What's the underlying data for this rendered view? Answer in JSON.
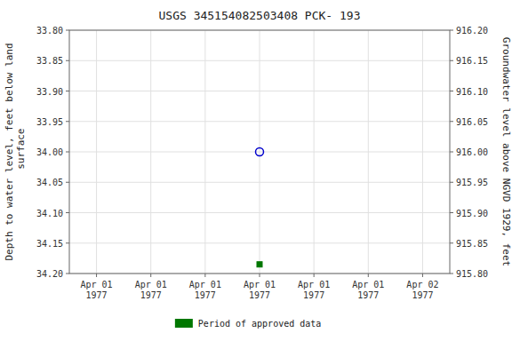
{
  "chart_data": {
    "type": "scatter",
    "title": "USGS 345154082503408 PCK- 193",
    "y_label": "Depth to water level, feet below land\n surface",
    "y2_label": "Groundwater level above NGVD 1929, feet",
    "categories": [
      "Apr 01\n1977",
      "Apr 01\n1977",
      "Apr 01\n1977",
      "Apr 01\n1977",
      "Apr 01\n1977",
      "Apr 01\n1977",
      "Apr 02\n1977"
    ],
    "ylim": [
      34.2,
      33.8
    ],
    "yticks": [
      {
        "value": 33.8,
        "label": "33.80"
      },
      33.85,
      {
        "value": 33.9,
        "label": "33.90"
      },
      33.95,
      {
        "value": 34.0,
        "label": "34.00"
      },
      34.05,
      {
        "value": 34.1,
        "label": "34.10"
      },
      34.15,
      {
        "value": 34.2,
        "label": "34.20"
      }
    ],
    "y2lim": [
      915.8,
      916.2
    ],
    "y2ticks": [
      {
        "value": 916.2,
        "label": "916.20"
      },
      916.15,
      {
        "value": 916.1,
        "label": "916.10"
      },
      916.05,
      {
        "value": 916.0,
        "label": "916.00"
      },
      915.95,
      {
        "value": 915.9,
        "label": "915.90"
      },
      915.85,
      {
        "value": 915.8,
        "label": "915.80"
      }
    ],
    "grid": true,
    "legend": "bottom",
    "series": [
      {
        "color": "#0000cc",
        "marker": "open-circle",
        "values": [
          null,
          null,
          null,
          34.0,
          null,
          null,
          null
        ]
      },
      {
        "name": "Period of approved data",
        "color": "#007700",
        "marker": "square",
        "values": [
          null,
          null,
          null,
          34.185,
          null,
          null,
          null
        ]
      }
    ]
  }
}
